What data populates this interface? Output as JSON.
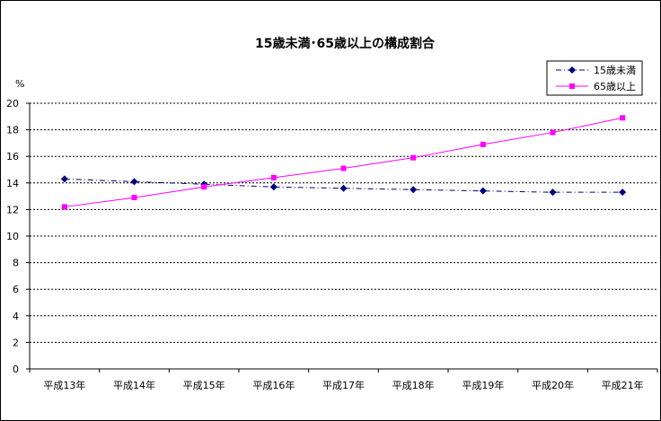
{
  "chart_data": {
    "type": "line",
    "title": "15歳未満･65歳以上の構成割合",
    "ylabel": "%",
    "xlabel": "",
    "categories": [
      "平成13年",
      "平成14年",
      "平成15年",
      "平成16年",
      "平成17年",
      "平成18年",
      "平成19年",
      "平成20年",
      "平成21年"
    ],
    "ylim": [
      0,
      20
    ],
    "yticks": [
      0,
      2,
      4,
      6,
      8,
      10,
      12,
      14,
      16,
      18,
      20
    ],
    "grid": true,
    "legend_position": "top-right",
    "series": [
      {
        "name": "15歳未満",
        "color": "#000080",
        "line_style": "dash-dot",
        "marker": "diamond",
        "values": [
          14.3,
          14.1,
          13.9,
          13.7,
          13.6,
          13.5,
          13.4,
          13.3,
          13.3
        ]
      },
      {
        "name": "65歳以上",
        "color": "#FF00FF",
        "line_style": "solid",
        "marker": "square",
        "values": [
          12.2,
          12.9,
          13.7,
          14.4,
          15.1,
          15.9,
          16.9,
          17.8,
          18.9
        ]
      }
    ]
  }
}
